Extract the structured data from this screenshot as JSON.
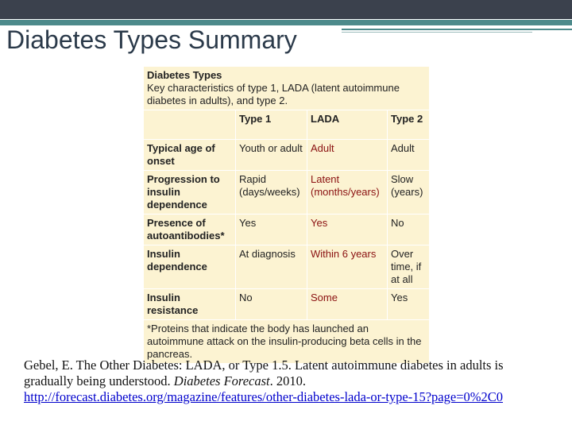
{
  "title": "Diabetes Types Summary",
  "table": {
    "caption_title": "Diabetes Types",
    "caption_text": "Key characteristics of type 1, LADA (latent autoimmune diabetes in adults), and type 2.",
    "columns": [
      "Type 1",
      "LADA",
      "Type 2"
    ],
    "rows": [
      [
        "Typical age of onset",
        "Youth or adult",
        "Adult",
        "Adult"
      ],
      [
        "Progression to insulin dependence",
        "Rapid (days/weeks)",
        "Latent (months/years)",
        "Slow (years)"
      ],
      [
        "Presence of autoantibodies*",
        "Yes",
        "Yes",
        "No"
      ],
      [
        "Insulin dependence",
        "At diagnosis",
        "Within 6 years",
        "Over time, if at all"
      ],
      [
        "Insulin resistance",
        "No",
        "Some",
        "Yes"
      ]
    ],
    "footnote": "*Proteins that indicate the body has launched an autoimmune attack on the insulin-producing beta cells in the pancreas."
  },
  "citation": {
    "text": "Gebel, E. The Other Diabetes: LADA, or Type 1.5. Latent autoimmune diabetes in adults is gradually being understood. ",
    "journal": "Diabetes Forecast",
    "year": ". 2010.",
    "url": "http://forecast.diabetes.org/magazine/features/other-diabetes-lada-or-type-15?page=0%2C0"
  }
}
